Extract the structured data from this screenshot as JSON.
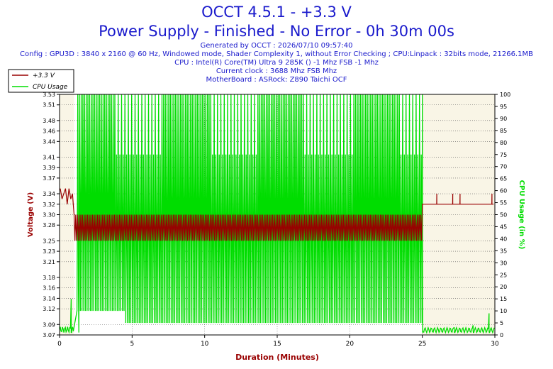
{
  "header": {
    "title": "OCCT 4.5.1 - +3.3 V",
    "subtitle": "Power Supply - Finished - No Error - 0h 30m 00s",
    "generated": "Generated by OCCT : 2026/07/10 09:57:40",
    "config": "Config : GPU3D : 3840 x 2160 @ 60 Hz, Windowed mode, Shader Complexity 1, without Error Checking ; CPU:Linpack : 32bits mode, 21266.1MB",
    "cpu": "CPU : Intel(R) Core(TM) Ultra 9 285K () -1 Mhz FSB -1 Mhz",
    "clock": "Current clock : 3688 Mhz FSB  Mhz",
    "motherboard": "MotherBoard : ASRock: Z890 Taichi OCF"
  },
  "colors": {
    "voltage": "#990000",
    "cpu": "#00dd00",
    "title": "#1a1acc",
    "plot_bg": "#f9f5e6",
    "grid": "#555555"
  },
  "chart_data": {
    "type": "line",
    "xlabel": "Duration (Minutes)",
    "ylabel": "Voltage (V)",
    "y2label": "CPU Usage (in %)",
    "xlim": [
      0,
      30
    ],
    "ylim": [
      3.07,
      3.53
    ],
    "y2lim": [
      0,
      100
    ],
    "x_ticks": [
      0,
      5,
      10,
      15,
      20,
      25,
      30
    ],
    "y_ticks": [
      3.07,
      3.09,
      3.12,
      3.14,
      3.16,
      3.18,
      3.21,
      3.23,
      3.25,
      3.28,
      3.3,
      3.32,
      3.34,
      3.37,
      3.39,
      3.41,
      3.44,
      3.46,
      3.48,
      3.51,
      3.53
    ],
    "y2_ticks": [
      0,
      5,
      10,
      15,
      20,
      25,
      30,
      35,
      40,
      45,
      50,
      55,
      60,
      65,
      70,
      75,
      80,
      85,
      90,
      95,
      100
    ],
    "grid": true,
    "legend": "top-left",
    "series": [
      {
        "name": "+3.3 V",
        "axis": "left",
        "baseline": 3.32,
        "samples_start": [
          3.35,
          3.33,
          3.34,
          3.35,
          3.32,
          3.35,
          3.33,
          3.34
        ],
        "load_high": 3.3,
        "load_low": 3.25,
        "load_range_x": [
          1.0,
          25.0
        ],
        "spikes_after": [
          [
            26.0,
            3.34
          ],
          [
            27.1,
            3.34
          ],
          [
            27.6,
            3.34
          ],
          [
            29.8,
            3.34
          ]
        ]
      },
      {
        "name": "CPU Usage",
        "axis": "right",
        "idle": 1,
        "peak": 100,
        "load_range_x": [
          1.0,
          25.0
        ],
        "trough_early": 10,
        "trough_late": 5,
        "trough_change_x": 4.5,
        "idle_spikes": [
          [
            0.8,
            15
          ],
          [
            1.3,
            20
          ],
          [
            27.2,
            3
          ],
          [
            28.5,
            4
          ],
          [
            29.6,
            9
          ]
        ]
      }
    ]
  }
}
